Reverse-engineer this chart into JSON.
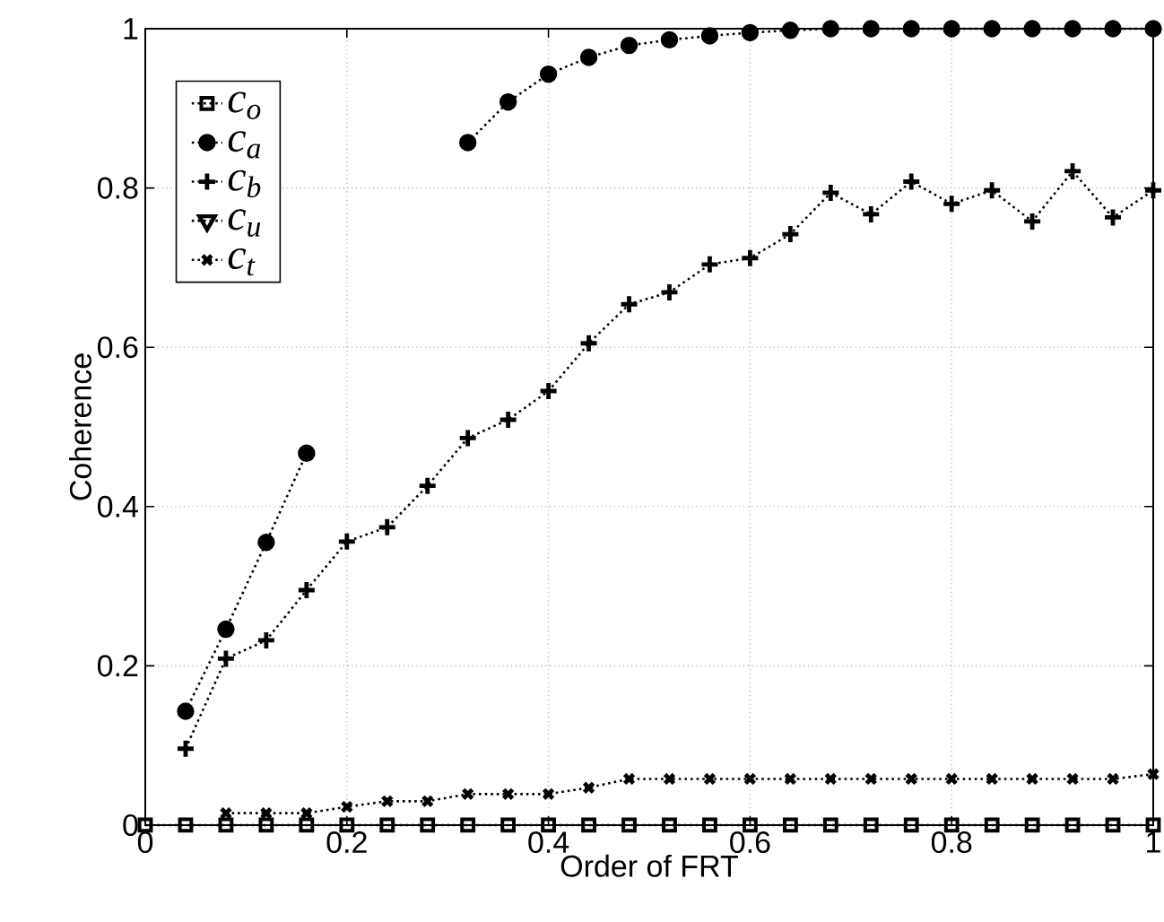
{
  "chart_data": {
    "type": "line",
    "xlabel": "Order of FRT",
    "ylabel": "Coherence",
    "x": [
      0,
      0.04,
      0.08,
      0.12,
      0.16,
      0.2,
      0.24,
      0.28,
      0.32,
      0.36,
      0.4,
      0.44,
      0.48,
      0.52,
      0.56,
      0.6,
      0.64,
      0.68,
      0.72,
      0.76,
      0.8,
      0.84,
      0.88,
      0.92,
      0.96,
      1
    ],
    "series": [
      {
        "name": "c$_{o}$",
        "color": "#000000",
        "marker": "square",
        "values": [
          0,
          0,
          0,
          0,
          0,
          0,
          0,
          0,
          0,
          0,
          0,
          0,
          0,
          0,
          0,
          0,
          0,
          0,
          0,
          0,
          0,
          0,
          0,
          0,
          0,
          0
        ]
      },
      {
        "name": "c$_{a}$",
        "color": "#000000",
        "marker": "circle",
        "values": [
          null,
          0.143,
          0.246,
          0.355,
          0.467,
          null,
          null,
          null,
          0.857,
          0.908,
          0.943,
          0.964,
          0.979,
          0.986,
          0.991,
          0.995,
          0.998,
          1,
          1,
          1,
          1,
          1,
          1,
          1,
          1,
          1
        ]
      },
      {
        "name": "c$_{b}$",
        "color": "#000000",
        "marker": "plus",
        "values": [
          null,
          0.096,
          0.209,
          0.232,
          0.295,
          0.356,
          0.374,
          0.426,
          0.486,
          0.509,
          0.545,
          0.605,
          0.654,
          0.669,
          0.704,
          0.712,
          0.742,
          0.794,
          0.767,
          0.808,
          0.78,
          0.797,
          0.758,
          0.821,
          0.763,
          0.797
        ]
      },
      {
        "name": "c$_{u}$",
        "color": "#000000",
        "marker": "triangle",
        "values": [
          null,
          null,
          null,
          null,
          null,
          null,
          null,
          null,
          null,
          null,
          null,
          null,
          null,
          null,
          null,
          null,
          null,
          null,
          null,
          null,
          null,
          null,
          null,
          null,
          null,
          null
        ]
      },
      {
        "name": "c$_{t}$",
        "color": "#000000",
        "marker": "cross",
        "values": [
          null,
          null,
          0.015,
          0.015,
          0.015,
          0.023,
          0.03,
          0.03,
          0.039,
          0.039,
          0.039,
          0.047,
          0.058,
          0.058,
          0.058,
          0.058,
          0.058,
          0.058,
          0.058,
          0.058,
          0.058,
          0.058,
          0.058,
          0.058,
          0.058,
          0.064
        ]
      }
    ],
    "xlim": [
      0,
      1
    ],
    "ylim": [
      0,
      1
    ],
    "xticks": [
      0,
      0.2,
      0.4,
      0.6,
      0.8,
      1
    ],
    "yticks": [
      0,
      0.2,
      0.4,
      0.6,
      0.8,
      1
    ],
    "grid": true,
    "legend": "top left",
    "line_style": "dotted"
  }
}
